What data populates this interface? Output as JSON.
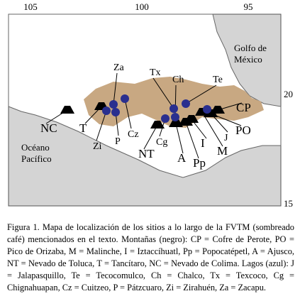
{
  "map": {
    "ticks": {
      "top": [
        "105",
        "100",
        "95"
      ],
      "right": [
        "20",
        "15"
      ]
    },
    "seas": {
      "gulf": [
        "Golfo de",
        "México"
      ],
      "pacific": [
        "Océano",
        "Pacífico"
      ]
    },
    "mountains": [
      "CP",
      "PO",
      "M",
      "I",
      "Pp",
      "A",
      "NT",
      "T",
      "NC"
    ],
    "lakes": [
      "J",
      "Te",
      "Ch",
      "Tx",
      "Cg",
      "Cz",
      "P",
      "Zi",
      "Za"
    ],
    "caption": "Figura 1. Mapa de localización de los sitios a lo largo de la FVTM (sombreado café) mencionados en el texto. Montañas (negro): CP = Cofre de Perote, PO = Pico de Orizaba, M = Malinche, I = Iztaccíhuatl, Pp = Popocatépetl, A = Ajusco, NT = Nevado de Toluca, T = Tancítaro, NC = Nevado de Colima. Lagos (azul): J = Jalapasquillo, Te = Tecocomulco, Ch = Chalco, Tx = Texcoco, Cg = Chignahuapan, Cz = Cuitzeo, P = Pátzcuaro, Zi = Zirahuén, Za = Zacapu."
  }
}
